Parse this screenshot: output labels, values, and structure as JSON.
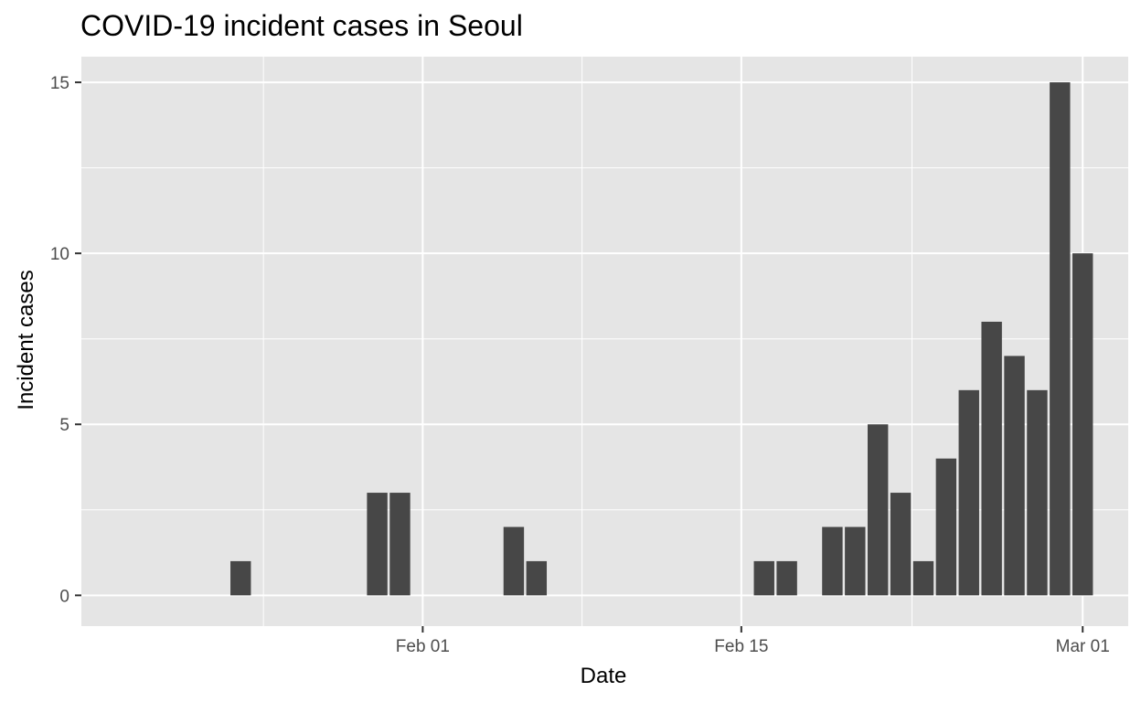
{
  "chart_data": {
    "type": "bar",
    "title": "COVID-19 incident cases in Seoul",
    "xlabel": "Date",
    "ylabel": "Incident cases",
    "x_tick_labels": [
      {
        "date": "2020-02-01",
        "label": "Feb 01"
      },
      {
        "date": "2020-02-15",
        "label": "Feb 15"
      },
      {
        "date": "2020-03-01",
        "label": "Mar 01"
      }
    ],
    "y_ticks": [
      0,
      5,
      10,
      15
    ],
    "ylim": [
      -0.9,
      15.75
    ],
    "xlim": [
      "2020-01-17",
      "2020-03-03"
    ],
    "grid": true,
    "colors": {
      "bar": "#474747",
      "panel": "#e5e5e5",
      "grid": "#ffffff"
    },
    "categories": [
      "2020-01-24",
      "2020-01-30",
      "2020-01-31",
      "2020-02-05",
      "2020-02-06",
      "2020-02-16",
      "2020-02-17",
      "2020-02-19",
      "2020-02-20",
      "2020-02-21",
      "2020-02-22",
      "2020-02-23",
      "2020-02-24",
      "2020-02-25",
      "2020-02-26",
      "2020-02-27",
      "2020-02-28",
      "2020-02-29",
      "2020-03-01"
    ],
    "values": [
      1,
      3,
      3,
      2,
      1,
      1,
      1,
      2,
      2,
      5,
      3,
      1,
      4,
      6,
      8,
      7,
      6,
      15,
      10
    ]
  }
}
